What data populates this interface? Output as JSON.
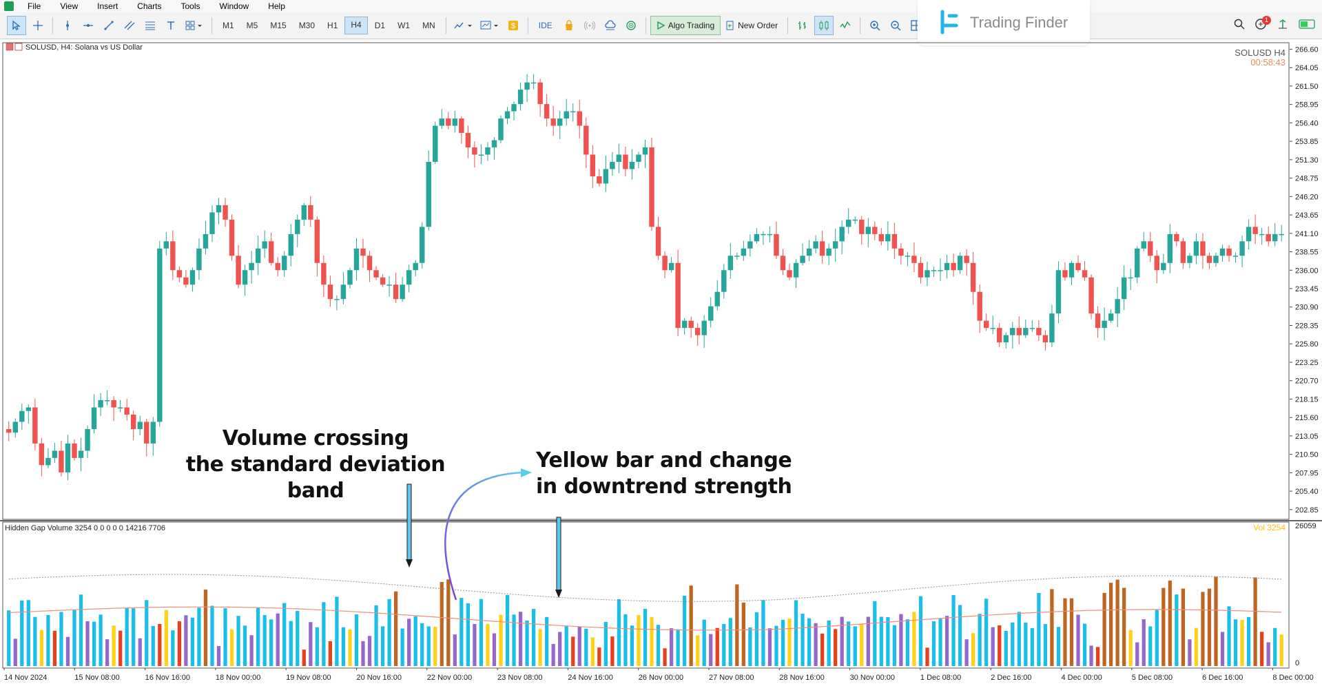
{
  "menu": [
    "File",
    "View",
    "Insert",
    "Charts",
    "Tools",
    "Window",
    "Help"
  ],
  "timeframes": [
    "M1",
    "M5",
    "M15",
    "M30",
    "H1",
    "H4",
    "D1",
    "W1",
    "MN"
  ],
  "active_timeframe": "H4",
  "toolbar": {
    "ide_label": "IDE",
    "algo_label": "Algo Trading",
    "new_order_label": "New Order"
  },
  "brand": {
    "name": "Trading Finder",
    "color": "#22b5e6"
  },
  "notifications": {
    "count": "1"
  },
  "chart": {
    "header": "SOLUSD, H4:  Solana vs US Dollar",
    "symbol_label": "SOLUSD H4",
    "countdown": "00:58:43",
    "price_labels": [
      "266.60",
      "264.05",
      "261.50",
      "258.95",
      "256.40",
      "253.85",
      "251.30",
      "248.75",
      "246.20",
      "243.65",
      "241.10",
      "238.55",
      "236.00",
      "233.45",
      "230.90",
      "228.35",
      "225.80",
      "223.25",
      "220.70",
      "218.15",
      "215.60",
      "213.05",
      "210.50",
      "207.95",
      "205.40",
      "202.85"
    ],
    "bull_color": "#26a69a",
    "bear_color": "#ef5350"
  },
  "indicator": {
    "header": "Hidden Gap Volume 3254 0 0 0 0 0 14216 7706",
    "value_label": "Vol 3254",
    "max_label": "26059",
    "zero_label": "0"
  },
  "time_labels": [
    "14 Nov 2024",
    "15 Nov 08:00",
    "16 Nov 16:00",
    "18 Nov 00:00",
    "19 Nov 08:00",
    "20 Nov 16:00",
    "22 Nov 00:00",
    "23 Nov 08:00",
    "24 Nov 16:00",
    "26 Nov 00:00",
    "27 Nov 08:00",
    "28 Nov 16:00",
    "30 Nov 00:00",
    "1 Dec 08:00",
    "2 Dec 16:00",
    "4 Dec 00:00",
    "5 Dec 08:00",
    "6 Dec 16:00",
    "8 Dec 00:00"
  ],
  "annotations": {
    "left_line1": "Volume crossing",
    "left_line2": "the standard deviation band",
    "right_line1": "Yellow bar and change",
    "right_line2": "in downtrend strength"
  },
  "chart_data": {
    "type": "candlestick",
    "x_start": "14 Nov 2024 00:00",
    "interval_hours": 4,
    "ylim": [
      201.5,
      267.5
    ],
    "closes": [
      213.5,
      215,
      216.5,
      217,
      212,
      209,
      210,
      211,
      208,
      212,
      210,
      211,
      214,
      217,
      218,
      218,
      217,
      217,
      216,
      214,
      215,
      212,
      215,
      239,
      240,
      236,
      235,
      234,
      236,
      239,
      241,
      244,
      245,
      243,
      238,
      234,
      236,
      237,
      239,
      240,
      237,
      236,
      238,
      241,
      243,
      245,
      243,
      237,
      234,
      232,
      232,
      234,
      236,
      239,
      238,
      236,
      235,
      234,
      234,
      232,
      234,
      236,
      237,
      242,
      251,
      256,
      257,
      256,
      257,
      255,
      253,
      252,
      252,
      253,
      254,
      257,
      258,
      259,
      261,
      262,
      262,
      259,
      257,
      256,
      257,
      258,
      258,
      256,
      252,
      249,
      248,
      250,
      251,
      252,
      250,
      251,
      252,
      253,
      242,
      238,
      236,
      237,
      228,
      229,
      228,
      227,
      229,
      231,
      233,
      236,
      238,
      238,
      239,
      240,
      241,
      241,
      241,
      238,
      236,
      235,
      237,
      238,
      239,
      240,
      238,
      239,
      240,
      242,
      243,
      243,
      241,
      242,
      241,
      240,
      241,
      239,
      238,
      238,
      237,
      235,
      236,
      236,
      236,
      237,
      236,
      238,
      237,
      233,
      229,
      228,
      228,
      226,
      227,
      228,
      227,
      228,
      228,
      227,
      226,
      230,
      236,
      235,
      237,
      236,
      235,
      230,
      228,
      229,
      230,
      232,
      235,
      235,
      239,
      240,
      238,
      236,
      237,
      241,
      240,
      237,
      238,
      240,
      238,
      237,
      238,
      239,
      238,
      238,
      240,
      242,
      241,
      241,
      240,
      241,
      241
    ],
    "y_axis_side": "right",
    "grid": false,
    "indicator": {
      "name": "Hidden Gap Volume",
      "value": 3254,
      "ylim": [
        0,
        26059
      ]
    },
    "volume_colors": {
      "normal": "#19bfe8",
      "below_average": "#9467c9",
      "yellow": "#ffd119",
      "red": "#e8401c",
      "brown": "#c0651f"
    },
    "band_colors": {
      "average": "#f08c78",
      "std_dev": "#909090"
    }
  }
}
